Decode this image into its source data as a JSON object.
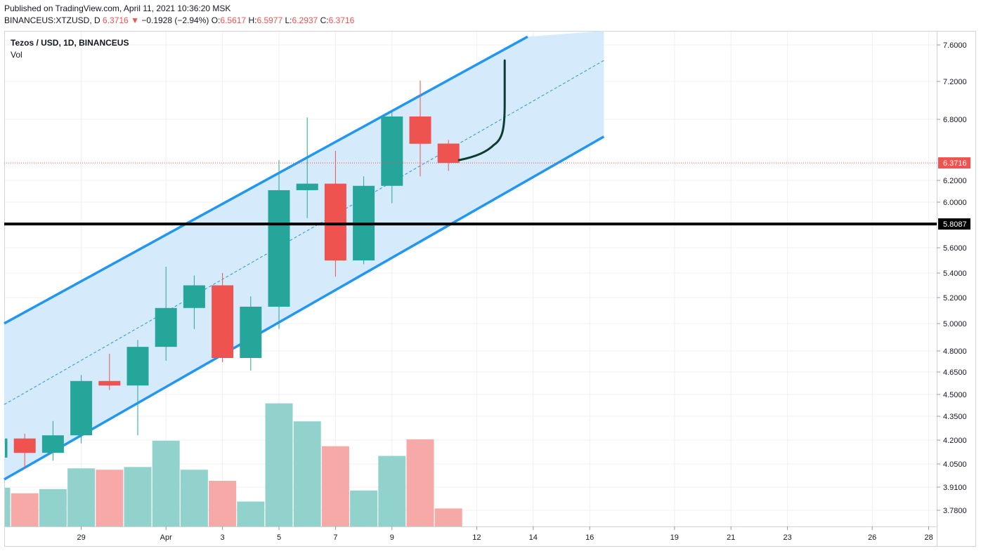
{
  "header": {
    "published": "Published on TradingView.com, April 11, 2021 10:36:20 MSK",
    "symbol": "BINANCEUS:XTZUSD, D",
    "last": "6.3716",
    "change_arrow": "▼",
    "change": "−0.1928 (−2.94%)",
    "o_label": "O:",
    "o_value": "6.5617",
    "h_label": "H:",
    "h_value": "6.5977",
    "l_label": "L:",
    "l_value": "6.2937",
    "c_label": "C:",
    "c_value": "6.3716"
  },
  "legend": {
    "title": "Tezos / USD, 1D, BINANCEUS",
    "volume": "Vol"
  },
  "colors": {
    "up": "#26a69a",
    "down": "#ef5350",
    "vol_up": "#92d2cc",
    "vol_down": "#f7a9a7",
    "channel": "#2196f3",
    "channel_fill": "#d3e9fb",
    "projection": "#0b3d31",
    "support": "#000000",
    "grid": "#eef0f3"
  },
  "chart_data": {
    "type": "candlestick",
    "y_ticks": [
      "7.6000",
      "7.2000",
      "6.8000",
      "6.2000",
      "6.0000",
      "5.6000",
      "5.4000",
      "5.2000",
      "5.0000",
      "4.8000",
      "4.6500",
      "4.5000",
      "4.3500",
      "4.2000",
      "4.0500",
      "3.9100",
      "3.7800"
    ],
    "x_ticks": [
      "29",
      "Apr",
      "3",
      "5",
      "7",
      "9",
      "12",
      "14",
      "16",
      "19",
      "21",
      "23",
      "26",
      "28"
    ],
    "candles": [
      {
        "o": 4.09,
        "h": 4.23,
        "l": 4.02,
        "c": 4.21
      },
      {
        "o": 4.21,
        "h": 4.24,
        "l": 4.02,
        "c": 4.12
      },
      {
        "o": 4.12,
        "h": 4.32,
        "l": 4.07,
        "c": 4.23
      },
      {
        "o": 4.23,
        "h": 4.63,
        "l": 4.18,
        "c": 4.59
      },
      {
        "o": 4.59,
        "h": 4.78,
        "l": 4.53,
        "c": 4.56
      },
      {
        "o": 4.56,
        "h": 4.88,
        "l": 4.23,
        "c": 4.83
      },
      {
        "o": 4.83,
        "h": 5.45,
        "l": 4.73,
        "c": 5.12
      },
      {
        "o": 5.12,
        "h": 5.38,
        "l": 4.96,
        "c": 5.3
      },
      {
        "o": 5.3,
        "h": 5.4,
        "l": 4.72,
        "c": 4.75
      },
      {
        "o": 4.75,
        "h": 5.21,
        "l": 4.66,
        "c": 5.13
      },
      {
        "o": 5.13,
        "h": 6.4,
        "l": 4.96,
        "c": 6.11
      },
      {
        "o": 6.11,
        "h": 6.82,
        "l": 5.86,
        "c": 6.17
      },
      {
        "o": 6.17,
        "h": 6.49,
        "l": 5.37,
        "c": 5.5
      },
      {
        "o": 5.5,
        "h": 6.24,
        "l": 5.47,
        "c": 6.15
      },
      {
        "o": 6.15,
        "h": 6.88,
        "l": 5.99,
        "c": 6.83
      },
      {
        "o": 6.83,
        "h": 7.21,
        "l": 6.24,
        "c": 6.56
      },
      {
        "o": 6.5617,
        "h": 6.5977,
        "l": 6.2937,
        "c": 6.3716
      }
    ],
    "volumes_relative": [
      0.28,
      0.24,
      0.27,
      0.42,
      0.41,
      0.43,
      0.62,
      0.41,
      0.33,
      0.18,
      0.89,
      0.76,
      0.58,
      0.26,
      0.51,
      0.63,
      0.13
    ],
    "last_price": "6.3716",
    "support_level": "5.8087",
    "support_value": 5.8087,
    "channel": {
      "upper": [
        {
          "bar": 0,
          "price": 4.97
        },
        {
          "bar": 18.8,
          "price": 7.69
        }
      ],
      "middle": [
        {
          "bar": 0,
          "price": 4.4
        },
        {
          "bar": 21.5,
          "price": 7.43
        }
      ],
      "lower": [
        {
          "bar": 0,
          "price": 3.93
        },
        {
          "bar": 21.5,
          "price": 6.63
        }
      ]
    }
  }
}
